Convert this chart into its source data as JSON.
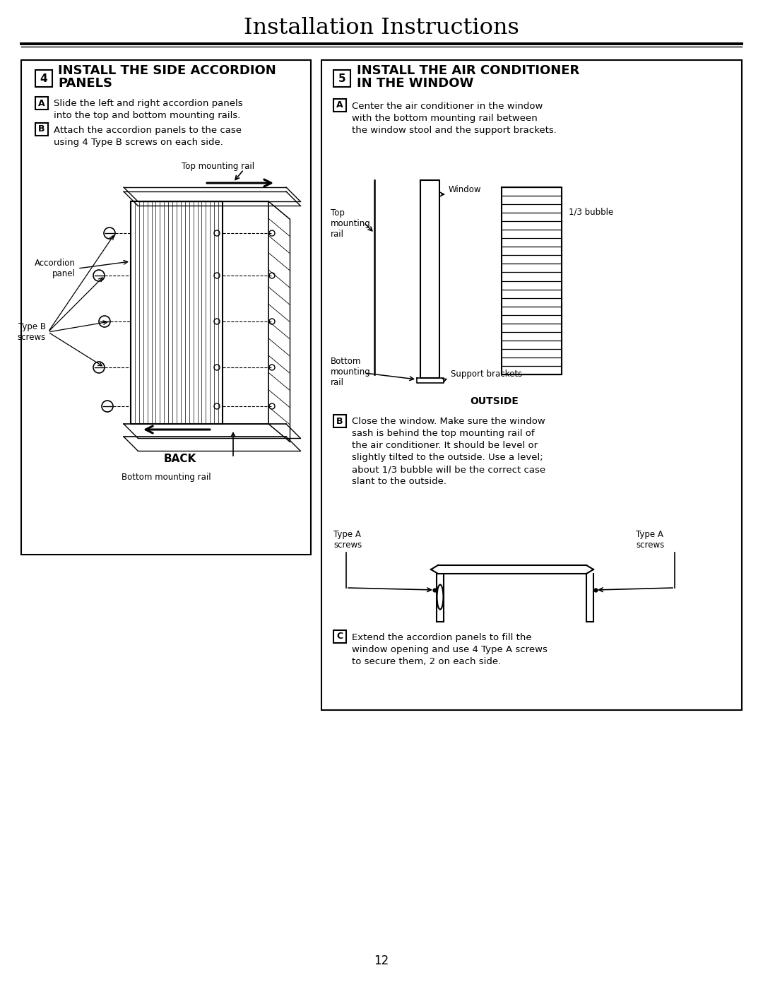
{
  "title": "Installation Instructions",
  "page_number": "12",
  "bg_color": "#ffffff",
  "left_panel": {
    "step_num": "4",
    "title_line1": "INSTALL THE SIDE ACCORDION",
    "title_line2": "PANELS",
    "step_a_text": "Slide the left and right accordion panels\ninto the top and bottom mounting rails.",
    "step_b_text": "Attach the accordion panels to the case\nusing 4 Type B screws on each side.",
    "label_top_rail": "Top mounting rail",
    "label_bottom_rail": "Bottom mounting rail",
    "label_accordion": "Accordion\npanel",
    "label_typeb": "Type B\nscrews",
    "label_back": "BACK"
  },
  "right_panel": {
    "step_num": "5",
    "title_line1": "INSTALL THE AIR CONDITIONER",
    "title_line2": "IN THE WINDOW",
    "step_a_text": "Center the air conditioner in the window\nwith the bottom mounting rail between\nthe window stool and the support brackets.",
    "step_b_text": "Close the window. Make sure the window\nsash is behind the top mounting rail of\nthe air conditioner. It should be level or\nslightly tilted to the outside. Use a level;\nabout 1/3 bubble will be the correct case\nslant to the outside.",
    "step_c_text": "Extend the accordion panels to fill the\nwindow opening and use 4 Type A screws\nto secure them, 2 on each side.",
    "label_top_rail": "Top\nmounting\nrail",
    "label_window": "Window",
    "label_bubble": "1/3 bubble",
    "label_bottom_rail": "Bottom\nmounting\nrail",
    "label_support": "Support brackets",
    "label_outside": "OUTSIDE",
    "label_typea_left": "Type A\nscrews",
    "label_typea_right": "Type A\nscrews"
  }
}
